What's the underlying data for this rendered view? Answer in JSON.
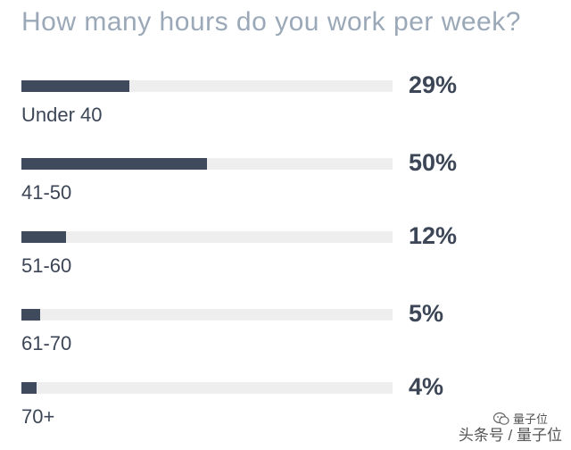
{
  "chart_data": {
    "type": "bar",
    "orientation": "horizontal",
    "title": "How many hours do you work per week?",
    "categories": [
      "Under 40",
      "41-50",
      "51-60",
      "61-70",
      "70+"
    ],
    "values": [
      29,
      50,
      12,
      5,
      4
    ],
    "value_labels": [
      "29%",
      "50%",
      "12%",
      "5%",
      "4%"
    ],
    "unit": "%",
    "xlim": [
      0,
      100
    ],
    "grid": false,
    "legend": "none",
    "colors": {
      "bar": "#3f4a5c",
      "track": "#eeeeee",
      "title": "#9aa8b8",
      "text": "#3c4656"
    }
  },
  "watermark": {
    "brand": "量子位",
    "text": "头条号 / 量子位"
  }
}
